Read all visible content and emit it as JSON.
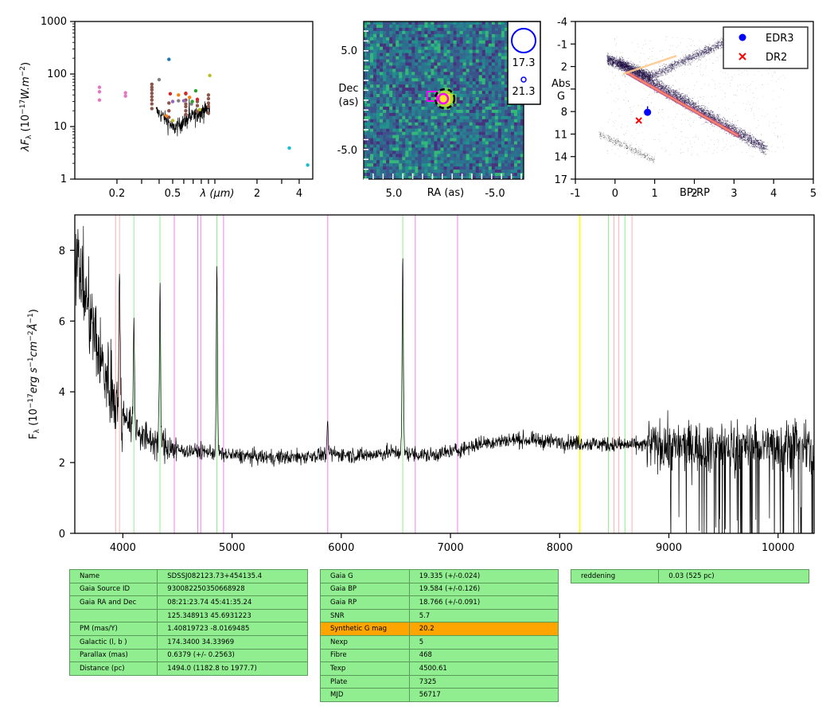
{
  "colors": {
    "table_bg": "#90ee90",
    "table_highlight": "#ffa500",
    "line_balmer": "#90ee90",
    "line_pink": "#ffb0b0",
    "line_violet": "#ee82ee",
    "line_yellow": "#ffff00",
    "spectrum": "#000000",
    "edr3": "#0000ff",
    "dr2": "#ff0000"
  },
  "sed": {
    "ylabel": "λF_λ (10^-17 W.m^-2)",
    "ylabel_parts": {
      "pre": "λF",
      "sub": "λ",
      "mid": " (10",
      "sup": "−17",
      "post": "W.m",
      "sup2": "−2",
      "end": ")"
    },
    "xlabel": "λ (μm)",
    "ytick_labels": [
      "1000",
      "100",
      "10",
      "1"
    ],
    "xtick_labels": [
      "0.2",
      "0.5",
      "2",
      "4"
    ],
    "x_scale": "log",
    "y_scale": "log",
    "xlim_um": [
      0.1,
      5.0
    ],
    "ylim": [
      1,
      1000
    ],
    "photometry": [
      {
        "color": "#e377c2",
        "points": [
          [
            0.15,
            32
          ],
          [
            0.15,
            46
          ],
          [
            0.15,
            56
          ],
          [
            0.23,
            38
          ],
          [
            0.23,
            44
          ]
        ]
      },
      {
        "color": "#8c564b",
        "points": [
          [
            0.355,
            22
          ],
          [
            0.355,
            27
          ],
          [
            0.355,
            32
          ],
          [
            0.355,
            37
          ],
          [
            0.355,
            43
          ],
          [
            0.355,
            50
          ],
          [
            0.355,
            56
          ],
          [
            0.355,
            64
          ],
          [
            0.47,
            15
          ],
          [
            0.47,
            20
          ],
          [
            0.47,
            28
          ],
          [
            0.62,
            17
          ],
          [
            0.62,
            20
          ],
          [
            0.62,
            24
          ],
          [
            0.62,
            27
          ],
          [
            0.62,
            32
          ],
          [
            0.62,
            42
          ],
          [
            0.75,
            19
          ],
          [
            0.75,
            25
          ],
          [
            0.75,
            30
          ],
          [
            0.9,
            24
          ],
          [
            0.9,
            28
          ],
          [
            0.9,
            34
          ],
          [
            0.9,
            40
          ],
          [
            0.9,
            18
          ]
        ]
      },
      {
        "color": "#7f7f7f",
        "points": [
          [
            0.4,
            78
          ],
          [
            0.55,
            31
          ],
          [
            0.68,
            27
          ]
        ]
      },
      {
        "color": "#1f77b4",
        "points": [
          [
            0.47,
            190
          ]
        ]
      },
      {
        "color": "#d62728",
        "points": [
          [
            0.48,
            42
          ],
          [
            0.62,
            43
          ],
          [
            0.75,
            33
          ]
        ]
      },
      {
        "color": "#ff7f0e",
        "points": [
          [
            0.55,
            40
          ],
          [
            0.66,
            36
          ],
          [
            0.45,
            16
          ]
        ]
      },
      {
        "color": "#2ca02c",
        "points": [
          [
            0.69,
            30
          ],
          [
            0.73,
            48
          ]
        ]
      },
      {
        "color": "#9467bd",
        "points": [
          [
            0.5,
            30
          ],
          [
            0.6,
            31
          ]
        ]
      },
      {
        "color": "#bcbd22",
        "points": [
          [
            0.5,
            13
          ],
          [
            0.92,
            94
          ],
          [
            0.78,
            21
          ]
        ]
      },
      {
        "color": "#17becf",
        "points": [
          [
            3.4,
            3.9
          ],
          [
            4.6,
            1.85
          ]
        ]
      }
    ]
  },
  "image": {
    "xlabel": "RA (as)",
    "ylabel_line1": "Dec",
    "ylabel_line2": "(as)",
    "xtick_labels": [
      "5.0",
      "-5.0"
    ],
    "ytick_labels": [
      "5.0",
      "-5.0"
    ],
    "legend": [
      {
        "mag": "17.3"
      },
      {
        "mag": "21.3"
      }
    ]
  },
  "hrd": {
    "xlabel": "BP-RP",
    "ylabel_line1": "Abs",
    "ylabel_line2": "G",
    "xtick_labels": [
      "-1",
      "0",
      "1",
      "2",
      "3",
      "4",
      "5"
    ],
    "ytick_labels": [
      "-4",
      "-1",
      "2",
      "5",
      "8",
      "11",
      "14",
      "17"
    ],
    "xlim": [
      -1,
      5
    ],
    "ylim": [
      17,
      -4
    ],
    "legend": [
      {
        "label": "EDR3",
        "marker": "dot"
      },
      {
        "label": "DR2",
        "marker": "x"
      }
    ],
    "edr3_point": {
      "bp_rp": 0.82,
      "abs_g": 8.1
    },
    "dr2_point": {
      "bp_rp": 0.6,
      "abs_g": 9.2
    }
  },
  "spectrum": {
    "ylabel": "F_λ (10^-17 erg s^-1 cm^-2 Å^-1)",
    "ylabel_parts": {
      "pre": "F",
      "sub": "λ",
      "mid": " (10",
      "sup": "−17",
      "erg": "erg s",
      "sup2": "−1",
      "cm": "cm",
      "sup3": "−2",
      "ang": "Å",
      "sup4": "−1",
      "end": ")"
    },
    "xtick_labels": [
      "4000",
      "5000",
      "6000",
      "7000",
      "8000",
      "9000",
      "10000"
    ],
    "ytick_labels": [
      "0",
      "2",
      "4",
      "6",
      "8"
    ],
    "xlim": [
      3560,
      10330
    ],
    "ylim": [
      0,
      9
    ],
    "green_lines": [
      4101,
      4340,
      4861,
      6563,
      8446,
      8598
    ],
    "pink_lines": [
      3934,
      3969,
      8498,
      8542,
      8662
    ],
    "violet_lines": [
      4471,
      4686,
      4713,
      4922,
      5876,
      6678,
      7065
    ],
    "yellow_lines": [
      8183
    ]
  },
  "chart_data": [
    {
      "type": "scatter",
      "title": "",
      "xlabel": "λ (μm)",
      "ylabel": "λF_λ (10^-17 W.m^-2)",
      "x_scale": "log",
      "y_scale": "log",
      "xlim": [
        0.1,
        5.0
      ],
      "ylim": [
        1,
        1000
      ],
      "note_series": "photometric SED points plus a noisy optical spectrum trace between 0.38 and 0.92 μm",
      "series": [
        {
          "x": [
            0.15,
            0.15,
            0.15,
            0.23,
            0.23
          ],
          "y": [
            32,
            46,
            56,
            38,
            44
          ]
        },
        {
          "x": [
            0.47
          ],
          "y": [
            190
          ]
        },
        {
          "x": [
            3.4,
            4.6
          ],
          "y": [
            3.9,
            1.85
          ]
        }
      ]
    },
    {
      "type": "scatter",
      "xlabel": "BP-RP",
      "ylabel": "Abs G",
      "xlim": [
        -1,
        5
      ],
      "ylim": [
        17,
        -4
      ],
      "series": [
        {
          "name": "EDR3",
          "x": [
            0.82
          ],
          "y": [
            8.1
          ]
        },
        {
          "name": "DR2",
          "x": [
            0.6
          ],
          "y": [
            9.2
          ]
        }
      ]
    },
    {
      "type": "line",
      "xlabel": "",
      "ylabel": "F_λ (10^-17 erg s^-1 cm^-2 Å^-1)",
      "xlim": [
        3560,
        10330
      ],
      "ylim": [
        0,
        9
      ],
      "continuum_points": {
        "x": [
          3560,
          3800,
          4000,
          4200,
          4500,
          4800,
          5000,
          5300,
          5600,
          5900,
          6200,
          6500,
          6800,
          7000,
          7300,
          7600,
          7900,
          8200,
          8500,
          8800,
          9000,
          9300,
          9600,
          9900,
          10200,
          10330
        ],
        "y": [
          8.0,
          4.8,
          3.4,
          2.7,
          2.35,
          2.3,
          2.2,
          2.15,
          2.15,
          2.25,
          2.2,
          2.3,
          2.2,
          2.3,
          2.55,
          2.65,
          2.6,
          2.55,
          2.5,
          2.5,
          2.45,
          2.45,
          2.45,
          2.5,
          2.5,
          2.2
        ]
      },
      "emission_lines": [
        {
          "x": 4101,
          "peak": 5.8
        },
        {
          "x": 4340,
          "peak": 6.8
        },
        {
          "x": 4861,
          "peak": 7.5
        },
        {
          "x": 6563,
          "peak": 7.8
        },
        {
          "x": 3969,
          "peak": 7.0
        },
        {
          "x": 5876,
          "peak": 3.0
        }
      ]
    }
  ],
  "table_left": {
    "rows": [
      [
        "Name",
        "SDSSJ082123.73+454135.4"
      ],
      [
        "Gaia Source ID",
        "930082250350668928"
      ],
      [
        "Gaia RA and Dec",
        "08:21:23.74     45:41:35.24"
      ],
      [
        "",
        "125.348913     45.6931223"
      ],
      [
        "PM (mas/Y)",
        "1.40819723     -8.0169485"
      ],
      [
        "Galactic (l, b )",
        "174.3400     34.33969"
      ],
      [
        "Parallax (mas)",
        "0.6379 (+/- 0.2563)"
      ],
      [
        "Distance (pc)",
        "1494.0 (1182.8 to 1977.7)"
      ]
    ]
  },
  "table_mid": {
    "highlight_row": 4,
    "rows": [
      [
        "Gaia G",
        "19.335 (+/-0.024)"
      ],
      [
        "Gaia BP",
        "19.584 (+/-0.126)"
      ],
      [
        "Gaia RP",
        "18.766 (+/-0.091)"
      ],
      [
        "SNR",
        "5.7"
      ],
      [
        "Synthetic G mag",
        "20.2"
      ],
      [
        "Nexp",
        "5"
      ],
      [
        "Fibre",
        "468"
      ],
      [
        "Texp",
        "4500.61"
      ],
      [
        "Plate",
        "7325"
      ],
      [
        "MJD",
        "56717"
      ]
    ]
  },
  "table_right": {
    "rows": [
      [
        "reddening",
        "0.03 (525 pc)"
      ]
    ]
  }
}
